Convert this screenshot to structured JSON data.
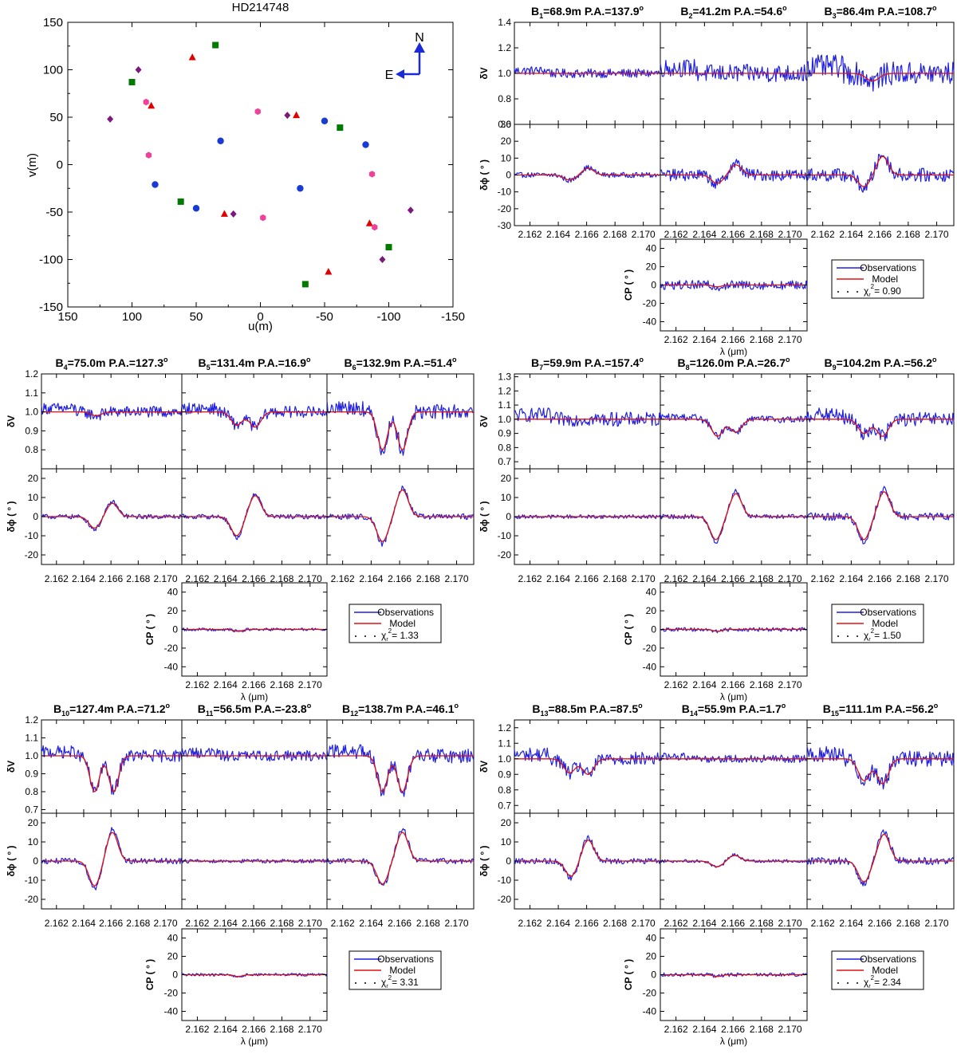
{
  "chart_data": {
    "type": "figure",
    "uv_plot": {
      "type": "scatter",
      "title": "HD214748",
      "xlabel": "u(m)",
      "ylabel": "v(m)",
      "xlim": [
        150,
        -150
      ],
      "ylim": [
        -150,
        150
      ],
      "xticks": [
        "150",
        "100",
        "50",
        "0",
        "-50",
        "-100",
        "-150"
      ],
      "yticks": [
        "150",
        "100",
        "50",
        "0",
        "-50",
        "-100",
        "-150"
      ],
      "compass": {
        "north": "N",
        "east": "E"
      },
      "series": [
        {
          "name": "green-squares",
          "marker": "square",
          "color": "#007a00",
          "points": [
            [
              100,
              87
            ],
            [
              35,
              126
            ],
            [
              -62,
              39
            ],
            [
              -100,
              -87
            ],
            [
              -35,
              -126
            ],
            [
              62,
              -39
            ]
          ]
        },
        {
          "name": "red-triangles",
          "marker": "triangle",
          "color": "#e00000",
          "points": [
            [
              53,
              113
            ],
            [
              85,
              62
            ],
            [
              -28,
              52
            ],
            [
              -53,
              -113
            ],
            [
              -85,
              -62
            ],
            [
              28,
              -52
            ]
          ]
        },
        {
          "name": "purple-diamonds",
          "marker": "diamond",
          "color": "#7a1a7a",
          "points": [
            [
              95,
              100
            ],
            [
              117,
              48
            ],
            [
              -21,
              52
            ],
            [
              -95,
              -100
            ],
            [
              -117,
              -48
            ],
            [
              21,
              -52
            ]
          ]
        },
        {
          "name": "pink-hexagons",
          "marker": "hexagon",
          "color": "#f0409a",
          "points": [
            [
              89,
              66
            ],
            [
              87,
              10
            ],
            [
              2,
              56
            ],
            [
              -87,
              -10
            ],
            [
              -89,
              -66
            ],
            [
              -2,
              -56
            ]
          ]
        },
        {
          "name": "blue-circles",
          "marker": "circle",
          "color": "#1a3ad4",
          "points": [
            [
              31,
              25
            ],
            [
              -50,
              46
            ],
            [
              -82,
              21
            ],
            [
              -31,
              -25
            ],
            [
              50,
              -46
            ],
            [
              82,
              -21
            ]
          ]
        }
      ]
    },
    "panel_groups": [
      {
        "baselines": [
          {
            "label": "B",
            "index": "1",
            "value": "=68.9m",
            "pa": "P.A.=137.9",
            "deg": "o",
            "model": [],
            "obs_noise": 0.035
          },
          {
            "label": "B",
            "index": "2",
            "value": "=41.2m",
            "pa": "P.A.=54.6",
            "deg": "o",
            "model": [],
            "obs_noise": 0.07
          },
          {
            "label": "B",
            "index": "3",
            "value": "=86.4m",
            "pa": "P.A.=108.7",
            "deg": "o",
            "model": [
              [
                2.1655,
                -0.06,
                0.00045
              ]
            ],
            "obs_noise": 0.09
          }
        ],
        "phi_models": [
          [
            [
              2.1648,
              -3,
              0.0004
            ],
            [
              2.1661,
              4,
              0.0004
            ]
          ],
          [
            [
              2.1649,
              -5,
              0.0004
            ],
            [
              2.1662,
              6,
              0.0004
            ]
          ],
          [
            [
              2.1649,
              -7,
              0.0004
            ],
            [
              2.1662,
              11,
              0.0004
            ]
          ]
        ],
        "phi_noise": [
          1.5,
          3.5,
          4
        ],
        "v_range": [
          0.6,
          1.4
        ],
        "v_ticks": [
          "1.4",
          "1.2",
          "1.0",
          "0.8",
          "0.6"
        ],
        "phi_range": [
          -30,
          30
        ],
        "phi_ticks": [
          "30",
          "20",
          "10",
          "0",
          "-10",
          "-20",
          "-30"
        ],
        "cp_noise": 5,
        "legend": {
          "obs": "Observations",
          "model": "Model",
          "chi_sym": "χ",
          "chi_sub": "r",
          "chi_sup": "2",
          "chi_val": "= 0.90"
        }
      },
      {
        "baselines": [
          {
            "label": "B",
            "index": "4",
            "value": "=75.0m",
            "pa": "P.A.=127.3",
            "deg": "o",
            "model": [
              [
                2.1649,
                -0.02,
                0.0004
              ]
            ],
            "obs_noise": 0.03
          },
          {
            "label": "B",
            "index": "5",
            "value": "=131.4m",
            "pa": "P.A.=16.9",
            "deg": "o",
            "model": [
              [
                2.1648,
                -0.07,
                0.0004
              ],
              [
                2.1661,
                -0.08,
                0.0004
              ]
            ],
            "obs_noise": 0.03
          },
          {
            "label": "B",
            "index": "6",
            "value": "=132.9m",
            "pa": "P.A.=51.4",
            "deg": "o",
            "model": [
              [
                2.1648,
                -0.2,
                0.00035
              ],
              [
                2.1662,
                -0.2,
                0.00035
              ]
            ],
            "obs_noise": 0.04
          }
        ],
        "phi_models": [
          [
            [
              2.1648,
              -6,
              0.0004
            ],
            [
              2.1661,
              7,
              0.0004
            ]
          ],
          [
            [
              2.1648,
              -10,
              0.0004
            ],
            [
              2.1661,
              11,
              0.0004
            ]
          ],
          [
            [
              2.1648,
              -13,
              0.0004
            ],
            [
              2.1662,
              14,
              0.0004
            ]
          ]
        ],
        "phi_noise": [
          1.2,
          1.2,
          1.5
        ],
        "v_range": [
          0.7,
          1.2
        ],
        "v_ticks": [
          "1.2",
          "1.1",
          "1.0",
          "0.9",
          "0.8"
        ],
        "phi_range": [
          -25,
          25
        ],
        "phi_ticks": [
          "20",
          "10",
          "0",
          "-10",
          "-20"
        ],
        "cp_noise": 1.5,
        "legend": {
          "obs": "Observations",
          "model": "Model",
          "chi_sym": "χ",
          "chi_sub": "r",
          "chi_sup": "2",
          "chi_val": "= 1.33"
        }
      },
      {
        "baselines": [
          {
            "label": "B",
            "index": "7",
            "value": "=59.9m",
            "pa": "P.A.=157.4",
            "deg": "o",
            "model": [],
            "obs_noise": 0.05
          },
          {
            "label": "B",
            "index": "8",
            "value": "=126.0m",
            "pa": "P.A.=26.7",
            "deg": "o",
            "model": [
              [
                2.1649,
                -0.12,
                0.0004
              ],
              [
                2.1662,
                -0.09,
                0.0004
              ]
            ],
            "obs_noise": 0.025
          },
          {
            "label": "B",
            "index": "9",
            "value": "=104.2m",
            "pa": "P.A.=56.2",
            "deg": "o",
            "model": [
              [
                2.1649,
                -0.1,
                0.0004
              ],
              [
                2.1662,
                -0.12,
                0.0004
              ]
            ],
            "obs_noise": 0.05
          }
        ],
        "phi_models": [
          [],
          [
            [
              2.1648,
              -12,
              0.0004
            ],
            [
              2.1662,
              12,
              0.0004
            ]
          ],
          [
            [
              2.1649,
              -12,
              0.0004
            ],
            [
              2.1663,
              13,
              0.0004
            ]
          ]
        ],
        "phi_noise": [
          1,
          1.2,
          2
        ],
        "v_range": [
          0.65,
          1.32
        ],
        "v_ticks": [
          "1.3",
          "1.2",
          "1.1",
          "1.0",
          "0.9",
          "0.8",
          "0.7"
        ],
        "phi_range": [
          -25,
          25
        ],
        "phi_ticks": [
          "20",
          "10",
          "0",
          "-10",
          "-20"
        ],
        "cp_noise": 2,
        "legend": {
          "obs": "Observations",
          "model": "Model",
          "chi_sym": "χ",
          "chi_sub": "r",
          "chi_sup": "2",
          "chi_val": "= 1.50"
        }
      },
      {
        "baselines": [
          {
            "label": "B",
            "index": "10",
            "value": "=127.4m",
            "pa": "P.A.=71.2",
            "deg": "o",
            "model": [
              [
                2.1648,
                -0.2,
                0.00035
              ],
              [
                2.1662,
                -0.2,
                0.00035
              ]
            ],
            "obs_noise": 0.035
          },
          {
            "label": "B",
            "index": "11",
            "value": "=56.5m",
            "pa": "P.A.=-23.8",
            "deg": "o",
            "model": [],
            "obs_noise": 0.03
          },
          {
            "label": "B",
            "index": "12",
            "value": "=138.7m",
            "pa": "P.A.=46.1",
            "deg": "o",
            "model": [
              [
                2.1648,
                -0.2,
                0.00035
              ],
              [
                2.1662,
                -0.2,
                0.00035
              ]
            ],
            "obs_noise": 0.04
          }
        ],
        "phi_models": [
          [
            [
              2.1648,
              -13,
              0.0004
            ],
            [
              2.1661,
              15,
              0.0004
            ]
          ],
          [],
          [
            [
              2.1648,
              -12,
              0.0004
            ],
            [
              2.1662,
              15,
              0.0004
            ]
          ]
        ],
        "phi_noise": [
          1.5,
          1,
          1.5
        ],
        "v_range": [
          0.68,
          1.2
        ],
        "v_ticks": [
          "1.2",
          "1.1",
          "1.0",
          "0.9",
          "0.8",
          "0.7"
        ],
        "phi_range": [
          -25,
          25
        ],
        "phi_ticks": [
          "20",
          "10",
          "0",
          "-10",
          "-20"
        ],
        "cp_noise": 1.5,
        "legend": {
          "obs": "Observations",
          "model": "Model",
          "chi_sym": "χ",
          "chi_sub": "r",
          "chi_sup": "2",
          "chi_val": "= 3.31"
        }
      },
      {
        "baselines": [
          {
            "label": "B",
            "index": "13",
            "value": "=88.5m",
            "pa": "P.A.=87.5",
            "deg": "o",
            "model": [
              [
                2.1648,
                -0.09,
                0.0004
              ],
              [
                2.1661,
                -0.1,
                0.0004
              ]
            ],
            "obs_noise": 0.045
          },
          {
            "label": "B",
            "index": "14",
            "value": "=55.9m",
            "pa": "P.A.=1.7",
            "deg": "o",
            "model": [],
            "obs_noise": 0.025
          },
          {
            "label": "B",
            "index": "15",
            "value": "=111.1m",
            "pa": "P.A.=56.2",
            "deg": "o",
            "model": [
              [
                2.1649,
                -0.14,
                0.0004
              ],
              [
                2.1662,
                -0.16,
                0.0004
              ]
            ],
            "obs_noise": 0.05
          }
        ],
        "phi_models": [
          [
            [
              2.1649,
              -8,
              0.0004
            ],
            [
              2.1661,
              11,
              0.0004
            ]
          ],
          [
            [
              2.1649,
              -3,
              0.0004
            ],
            [
              2.1661,
              3,
              0.0004
            ]
          ],
          [
            [
              2.1649,
              -11,
              0.0004
            ],
            [
              2.1663,
              14,
              0.0004
            ]
          ]
        ],
        "phi_noise": [
          1.5,
          0.8,
          2
        ],
        "v_range": [
          0.65,
          1.25
        ],
        "v_ticks": [
          "1.2",
          "1.1",
          "1.0",
          "0.9",
          "0.8",
          "0.7"
        ],
        "phi_range": [
          -25,
          25
        ],
        "phi_ticks": [
          "20",
          "10",
          "0",
          "-10",
          "-20"
        ],
        "cp_noise": 2,
        "legend": {
          "obs": "Observations",
          "model": "Model",
          "chi_sym": "χ",
          "chi_sub": "r",
          "chi_sup": "2",
          "chi_val": "= 2.34"
        }
      }
    ],
    "x_ticks": [
      "2.162",
      "2.164",
      "2.166",
      "2.168",
      "2.170"
    ],
    "x_tick_values": [
      2.162,
      2.164,
      2.166,
      2.168,
      2.17
    ],
    "x_range": [
      2.1609,
      2.1712
    ],
    "xlabel": "λ (μm)",
    "ylabels": {
      "dv": "δV",
      "dphi": "δϕ (  °  )",
      "cp": "CP (  °  )"
    },
    "cp_range": [
      -50,
      50
    ],
    "cp_ticks": [
      "40",
      "20",
      "0",
      "-20",
      "-40"
    ],
    "colors": {
      "obs": "#1f1fe0",
      "model": "#e01010"
    }
  }
}
